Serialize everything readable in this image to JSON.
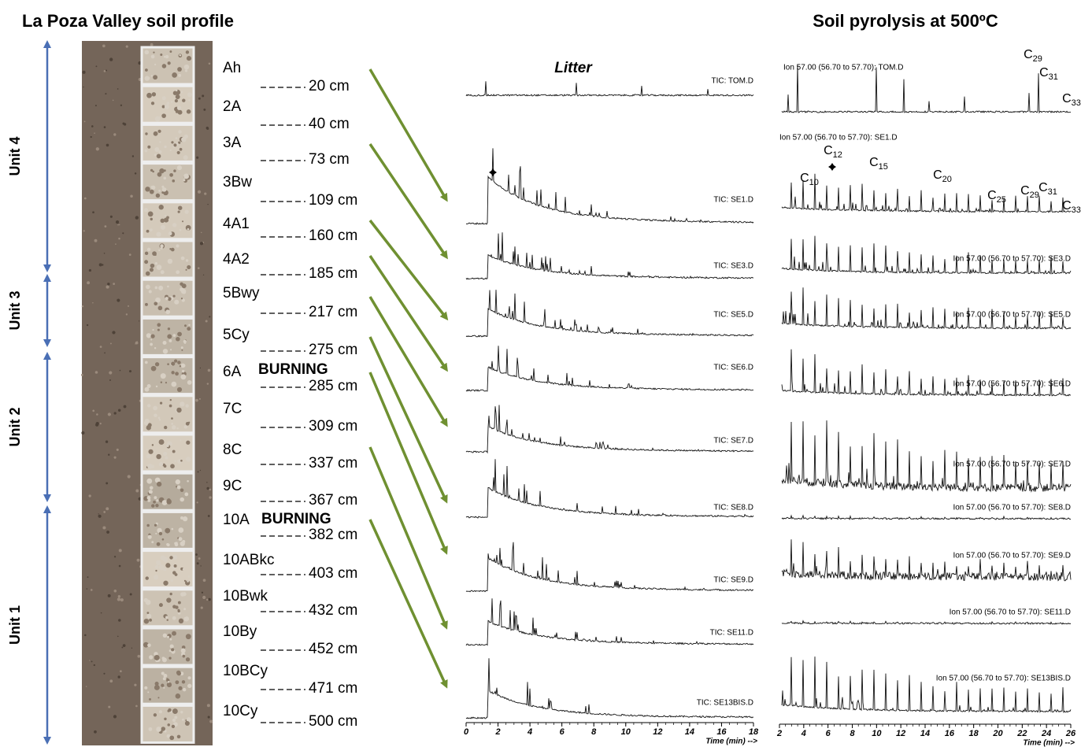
{
  "left_title": "La Poza Valley soil profile",
  "right_title": "Soil pyrolysis at 500ºC",
  "units": [
    "Unit 4",
    "Unit 3",
    "Unit 2",
    "Unit 1"
  ],
  "horizons": [
    {
      "name": "Ah",
      "depth": "20 cm"
    },
    {
      "name": "2A",
      "depth": "40 cm"
    },
    {
      "name": "3A",
      "depth": "73 cm"
    },
    {
      "name": "3Bw",
      "depth": "109 cm"
    },
    {
      "name": "4A1",
      "depth": "160 cm"
    },
    {
      "name": "4A2",
      "depth": "185 cm"
    },
    {
      "name": "5Bwy",
      "depth": "217 cm"
    },
    {
      "name": "5Cy",
      "depth": "275 cm"
    },
    {
      "name": "6A",
      "depth": "285 cm"
    },
    {
      "name": "7C",
      "depth": "309 cm"
    },
    {
      "name": "8C",
      "depth": "337 cm"
    },
    {
      "name": "9C",
      "depth": "367 cm"
    },
    {
      "name": "10A",
      "depth": "382 cm"
    },
    {
      "name": "10ABkc",
      "depth": "403 cm"
    },
    {
      "name": "10Bwk",
      "depth": "432 cm"
    },
    {
      "name": "10By",
      "depth": "452 cm"
    },
    {
      "name": "10BCy",
      "depth": "471 cm"
    },
    {
      "name": "10Cy",
      "depth": "500 cm"
    }
  ],
  "burning": [
    "BURNING",
    "BURNING"
  ],
  "tic": {
    "title": "Litter",
    "labels": [
      "TIC: TOM.D",
      "TIC: SE1.D",
      "TIC: SE3.D",
      "TIC: SE5.D",
      "TIC: SE6.D",
      "TIC: SE7.D",
      "TIC: SE8.D",
      "TIC: SE9.D",
      "TIC: SE11.D",
      "TIC: SE13BIS.D"
    ],
    "ticks": [
      0,
      2,
      4,
      6,
      8,
      10,
      12,
      14,
      16,
      18
    ],
    "axis_label": "Time (min) -->"
  },
  "ion": {
    "labels": [
      "Ion 57.00 (56.70 to 57.70): TOM.D",
      "Ion 57.00 (56.70 to 57.70): SE1.D",
      "Ion 57.00 (56.70 to 57.70): SE3.D",
      "Ion 57.00 (56.70 to 57.70): SE5.D",
      "Ion 57.00 (56.70 to 57.70): SE6.D",
      "Ion 57.00 (56.70 to 57.70): SE7.D",
      "Ion 57.00 (56.70 to 57.70): SE8.D",
      "Ion 57.00 (56.70 to 57.70): SE9.D",
      "Ion 57.00 (56.70 to 57.70): SE11.D",
      "Ion 57.00 (56.70 to 57.70): SE13BIS.D"
    ],
    "ticks": [
      2,
      4,
      6,
      8,
      10,
      12,
      14,
      16,
      18,
      20,
      22,
      24,
      26
    ],
    "axis_label": "Time (min) -->",
    "tom_peaks": [
      {
        "base": "C",
        "sub": "29"
      },
      {
        "base": "C",
        "sub": "31"
      },
      {
        "base": "C",
        "sub": "33"
      }
    ],
    "se1_peaks": [
      {
        "base": "C",
        "sub": "10"
      },
      {
        "base": "C",
        "sub": "12"
      },
      {
        "base": "C",
        "sub": "15"
      },
      {
        "base": "C",
        "sub": "20"
      },
      {
        "base": "C",
        "sub": "25"
      },
      {
        "base": "C",
        "sub": "29"
      },
      {
        "base": "C",
        "sub": "31"
      },
      {
        "base": "C",
        "sub": "33"
      }
    ]
  }
}
